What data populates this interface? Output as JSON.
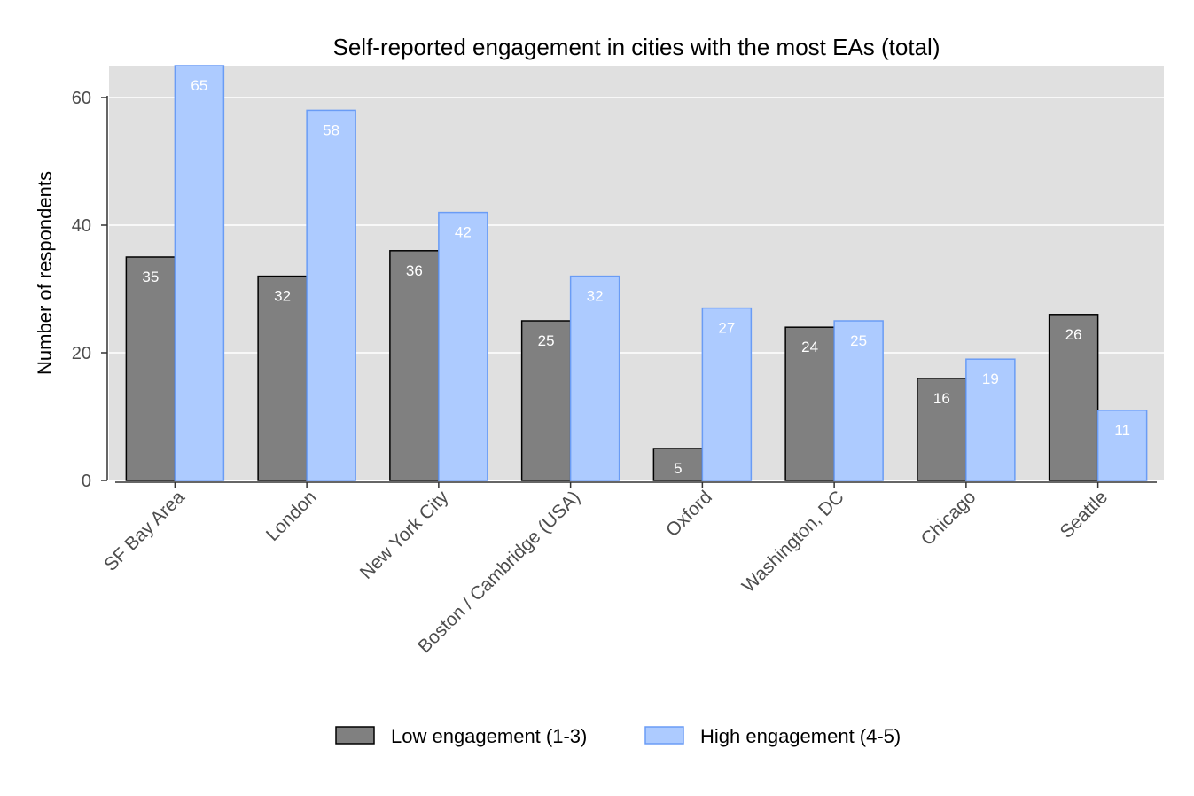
{
  "chart_data": {
    "type": "bar",
    "title": "Self-reported engagement in cities with the most EAs (total)",
    "xlabel": "",
    "ylabel": "Number of respondents",
    "ylim": [
      0,
      65
    ],
    "yticks": [
      0,
      20,
      40,
      60
    ],
    "grid": true,
    "legend_position": "bottom",
    "categories": [
      "SF Bay Area",
      "London",
      "New York City",
      "Boston / Cambridge (USA)",
      "Oxford",
      "Washington, DC",
      "Chicago",
      "Seattle"
    ],
    "series": [
      {
        "name": "Low engagement (1-3)",
        "color": "#808080",
        "stroke": "#000000",
        "values": [
          35,
          32,
          36,
          25,
          5,
          24,
          16,
          26
        ]
      },
      {
        "name": "High engagement (4-5)",
        "color": "#adcbff",
        "stroke": "#6a9cf5",
        "values": [
          65,
          58,
          42,
          32,
          27,
          25,
          19,
          11
        ]
      }
    ]
  }
}
